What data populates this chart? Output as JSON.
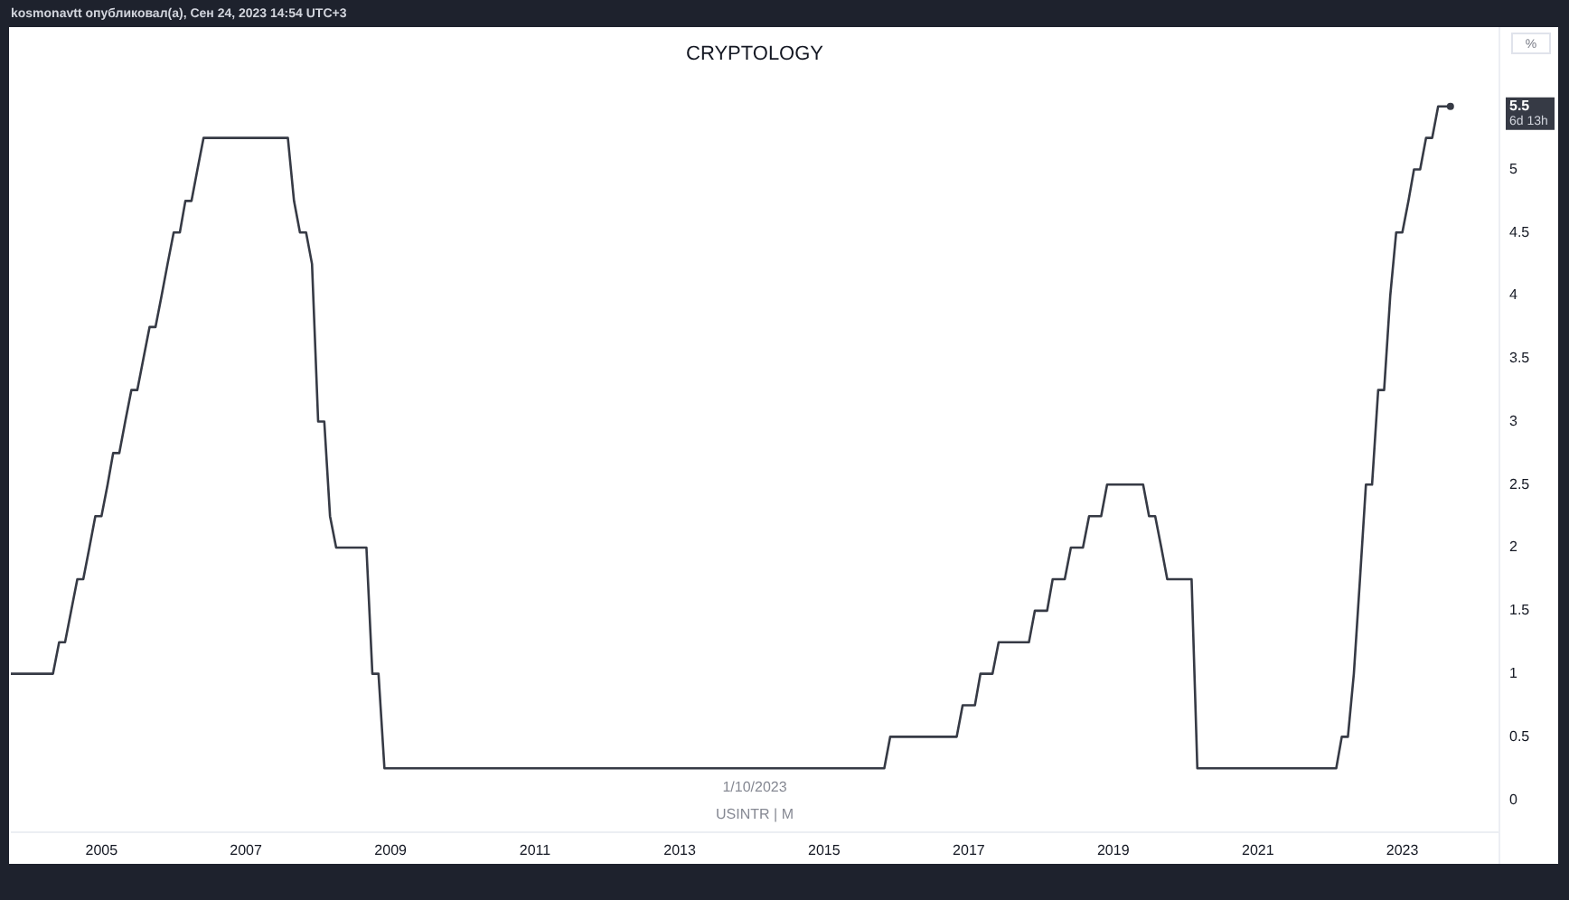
{
  "chart_data": {
    "type": "line",
    "title": "CRYPTOLOGY",
    "ylabel": "%",
    "annotations": [
      "kosmonavtt опубликовал(а), Сен 24, 2023 14:54 UTC+3",
      "5.5",
      "6d 13h",
      "1/10/2023",
      "USINTR | M"
    ],
    "x": [
      "2003-10",
      "2004-05",
      "2004-06",
      "2004-07",
      "2004-08",
      "2004-09",
      "2004-10",
      "2004-11",
      "2004-12",
      "2005-01",
      "2005-02",
      "2005-03",
      "2005-04",
      "2005-05",
      "2005-06",
      "2005-07",
      "2005-08",
      "2005-09",
      "2005-10",
      "2005-11",
      "2005-12",
      "2006-01",
      "2006-02",
      "2006-03",
      "2006-04",
      "2006-05",
      "2006-06",
      "2007-08",
      "2007-09",
      "2007-10",
      "2007-11",
      "2007-12",
      "2008-01",
      "2008-02",
      "2008-03",
      "2008-04",
      "2008-09",
      "2008-10",
      "2008-11",
      "2008-12",
      "2015-11",
      "2015-12",
      "2016-11",
      "2016-12",
      "2017-02",
      "2017-03",
      "2017-05",
      "2017-06",
      "2017-11",
      "2017-12",
      "2018-02",
      "2018-03",
      "2018-05",
      "2018-06",
      "2018-08",
      "2018-09",
      "2018-11",
      "2018-12",
      "2019-06",
      "2019-07",
      "2019-08",
      "2019-09",
      "2019-10",
      "2020-02",
      "2020-03",
      "2022-02",
      "2022-03",
      "2022-04",
      "2022-05",
      "2022-06",
      "2022-07",
      "2022-08",
      "2022-09",
      "2022-10",
      "2022-11",
      "2022-12",
      "2023-01",
      "2023-02",
      "2023-03",
      "2023-04",
      "2023-05",
      "2023-06",
      "2023-07",
      "2023-09"
    ],
    "values": [
      1.0,
      1.0,
      1.25,
      1.25,
      1.5,
      1.75,
      1.75,
      2.0,
      2.25,
      2.25,
      2.5,
      2.75,
      2.75,
      3.0,
      3.25,
      3.25,
      3.5,
      3.75,
      3.75,
      4.0,
      4.25,
      4.5,
      4.5,
      4.75,
      4.75,
      5.0,
      5.25,
      5.25,
      4.75,
      4.5,
      4.5,
      4.25,
      3.0,
      3.0,
      2.25,
      2.0,
      2.0,
      1.0,
      1.0,
      0.25,
      0.25,
      0.5,
      0.5,
      0.75,
      0.75,
      1.0,
      1.0,
      1.25,
      1.25,
      1.5,
      1.5,
      1.75,
      1.75,
      2.0,
      2.0,
      2.25,
      2.25,
      2.5,
      2.5,
      2.25,
      2.25,
      2.0,
      1.75,
      1.75,
      0.25,
      0.25,
      0.5,
      0.5,
      1.0,
      1.75,
      2.5,
      2.5,
      3.25,
      3.25,
      4.0,
      4.5,
      4.5,
      4.75,
      5.0,
      5.0,
      5.25,
      5.25,
      5.5,
      5.5
    ],
    "color": "#363a45",
    "xlim": [
      "2003-10",
      "2024-05"
    ],
    "xticks": [
      "2005",
      "2007",
      "2009",
      "2011",
      "2013",
      "2015",
      "2017",
      "2019",
      "2021",
      "2023"
    ],
    "ylim": [
      -0.25,
      6.1
    ],
    "yticks": [
      0,
      0.5,
      1,
      1.5,
      2,
      2.5,
      3,
      3.5,
      4,
      4.5,
      5
    ]
  }
}
